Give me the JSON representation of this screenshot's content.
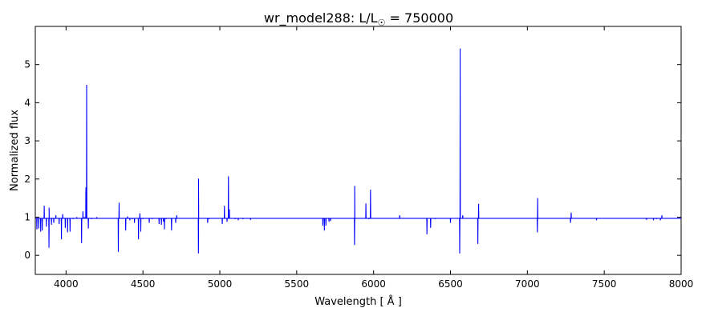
{
  "chart_data": {
    "type": "line",
    "title_main": "wr_model288: L/L",
    "title_sub": "☉",
    "title_rest": " = 750000",
    "xlabel": "Wavelength [ Å ]",
    "ylabel": "Normalized flux",
    "xlim": [
      3800,
      8000
    ],
    "ylim": [
      -0.5,
      6.0
    ],
    "xticks": [
      4000,
      4500,
      5000,
      5500,
      6000,
      6500,
      7000,
      7500,
      8000
    ],
    "yticks": [
      0,
      1,
      2,
      3,
      4,
      5
    ],
    "grid": false,
    "series_color": "#0000ff",
    "baseline": 0.97,
    "features": [
      [
        3810,
        0.68
      ],
      [
        3822,
        0.7
      ],
      [
        3835,
        0.62
      ],
      [
        3845,
        0.65
      ],
      [
        3858,
        1.3
      ],
      [
        3872,
        0.75
      ],
      [
        3889,
        0.2
      ],
      [
        3889.5,
        1.25
      ],
      [
        3905,
        0.8
      ],
      [
        3920,
        0.85
      ],
      [
        3934,
        1.05
      ],
      [
        3955,
        0.82
      ],
      [
        3970,
        0.42
      ],
      [
        3978,
        1.08
      ],
      [
        3995,
        0.72
      ],
      [
        4010,
        0.6
      ],
      [
        4026,
        0.62
      ],
      [
        4045,
        0.95
      ],
      [
        4070,
        1.0
      ],
      [
        4101,
        0.32
      ],
      [
        4110,
        1.15
      ],
      [
        4120,
        1.0
      ],
      [
        4129,
        1.78
      ],
      [
        4134,
        4.47
      ],
      [
        4145,
        0.7
      ],
      [
        4166,
        0.95
      ],
      [
        4200,
        1.0
      ],
      [
        4340,
        0.09
      ],
      [
        4345,
        1.38
      ],
      [
        4388,
        0.65
      ],
      [
        4400,
        1.02
      ],
      [
        4415,
        0.92
      ],
      [
        4430,
        0.95
      ],
      [
        4445,
        0.85
      ],
      [
        4471,
        0.42
      ],
      [
        4480,
        1.1
      ],
      [
        4486,
        0.62
      ],
      [
        4500,
        0.95
      ],
      [
        4541,
        0.85
      ],
      [
        4560,
        0.95
      ],
      [
        4605,
        0.82
      ],
      [
        4620,
        0.8
      ],
      [
        4634,
        0.88
      ],
      [
        4640,
        0.68
      ],
      [
        4650,
        0.95
      ],
      [
        4686,
        0.65
      ],
      [
        4713,
        0.85
      ],
      [
        4720,
        1.05
      ],
      [
        4861,
        0.05
      ],
      [
        4861.5,
        2.01
      ],
      [
        4921,
        0.85
      ],
      [
        4930,
        0.95
      ],
      [
        5016,
        0.82
      ],
      [
        5030,
        1.3
      ],
      [
        5047,
        0.88
      ],
      [
        5056,
        2.07
      ],
      [
        5062,
        1.2
      ],
      [
        5100,
        0.95
      ],
      [
        5120,
        0.92
      ],
      [
        5150,
        0.95
      ],
      [
        5200,
        0.93
      ],
      [
        5670,
        0.78
      ],
      [
        5680,
        0.65
      ],
      [
        5690,
        0.78
      ],
      [
        5710,
        0.88
      ],
      [
        5720,
        0.9
      ],
      [
        5876,
        0.27
      ],
      [
        5877,
        1.82
      ],
      [
        5950,
        1.36
      ],
      [
        5970,
        0.95
      ],
      [
        5980,
        1.72
      ],
      [
        6170,
        1.05
      ],
      [
        6347,
        0.55
      ],
      [
        6371,
        0.72
      ],
      [
        6400,
        0.95
      ],
      [
        6500,
        0.85
      ],
      [
        6560,
        0.05
      ],
      [
        6563,
        5.42
      ],
      [
        6580,
        1.05
      ],
      [
        6678,
        0.3
      ],
      [
        6683,
        1.35
      ],
      [
        6800,
        0.97
      ],
      [
        6900,
        0.97
      ],
      [
        7065,
        0.6
      ],
      [
        7067,
        1.5
      ],
      [
        7200,
        0.97
      ],
      [
        7281,
        0.85
      ],
      [
        7285,
        1.12
      ],
      [
        7300,
        0.97
      ],
      [
        7450,
        0.92
      ],
      [
        7500,
        0.97
      ],
      [
        7775,
        0.93
      ],
      [
        7820,
        0.92
      ],
      [
        7840,
        0.95
      ],
      [
        7865,
        0.92
      ],
      [
        7875,
        1.05
      ],
      [
        7890,
        0.97
      ]
    ]
  }
}
